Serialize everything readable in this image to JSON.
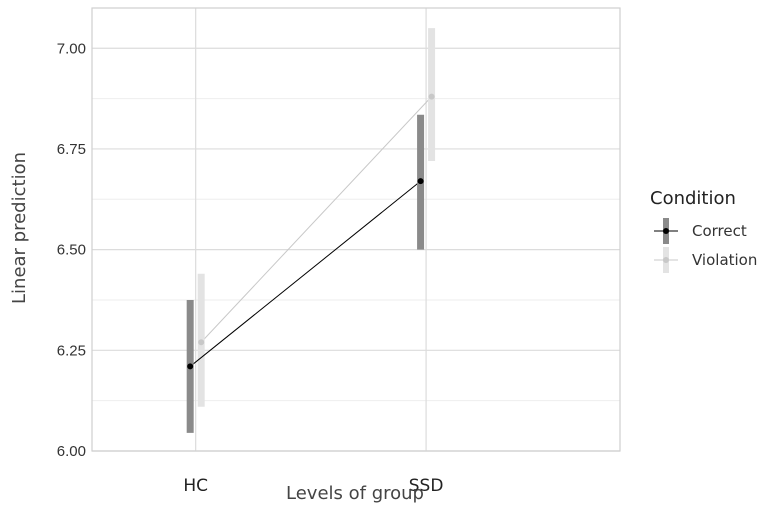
{
  "chart_data": {
    "type": "line",
    "title": "",
    "xlabel": "Levels of group",
    "ylabel": "Linear prediction",
    "categories": [
      "HC",
      "SSD"
    ],
    "ylim": [
      6.0,
      7.1
    ],
    "yticks": [
      6.0,
      6.25,
      6.5,
      6.75,
      7.0
    ],
    "ytick_labels": [
      "6.00",
      "6.25",
      "6.50",
      "6.75",
      "7.00"
    ],
    "grid": true,
    "legend": {
      "title": "Condition",
      "position": "right"
    },
    "series": [
      {
        "name": "Correct",
        "color": "#000000",
        "errorbar_color": "#8a8a8a",
        "values": [
          6.21,
          6.67
        ],
        "lower": [
          6.045,
          6.5
        ],
        "upper": [
          6.375,
          6.835
        ]
      },
      {
        "name": "Violation",
        "color": "#c8c8c8",
        "errorbar_color": "#e3e3e3",
        "values": [
          6.27,
          6.88
        ],
        "lower": [
          6.11,
          6.72
        ],
        "upper": [
          6.44,
          7.05
        ]
      }
    ]
  }
}
